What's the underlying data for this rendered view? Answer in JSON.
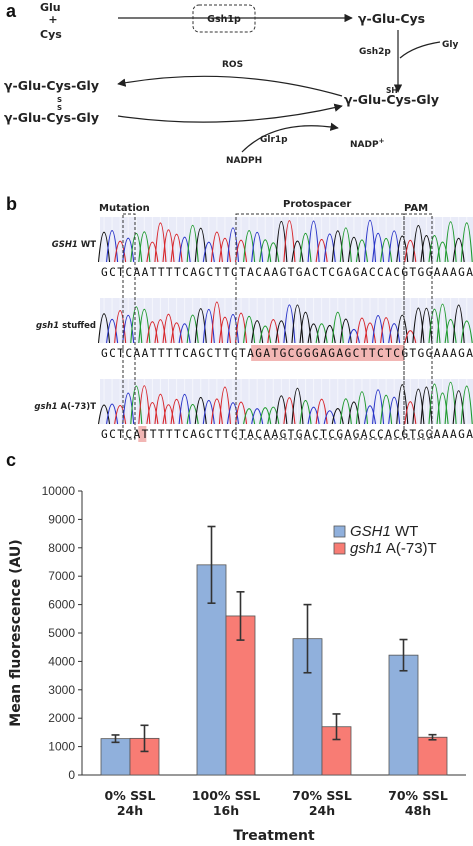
{
  "panel_a": {
    "label": "a",
    "glu": "Glu",
    "plus": "+",
    "cys": "Cys",
    "gsh1p": "Gsh1p",
    "ygc": "γ-Glu-Cys",
    "gsh2p": "Gsh2p",
    "gly": "Gly",
    "sh": "SH",
    "gsh": "γ-Glu-Cys-Gly",
    "ros": "ROS",
    "gssg_top": "γ-Glu-Cys-Gly",
    "gssg_s1": "S",
    "gssg_s2": "S",
    "gssg_bottom": "γ-Glu-Cys-Gly",
    "glr1p": "Glr1p",
    "nadph": "NADPH",
    "nadp": "NADP",
    "nadp_sup": "+"
  },
  "panel_b": {
    "label": "b",
    "mutation": "Mutation",
    "protospacer": "Protospacer",
    "pam": "PAM",
    "tracks": [
      {
        "gene": "GSH1",
        "suffix": " WT",
        "seq": "GCTCAATTTTCAGCTTCTACAAGTGACTCGAGACCACGTGGAAAGA"
      },
      {
        "gene": "gsh1",
        "suffix": " stuffed",
        "seq": "GCTCAATTTTCAGCTTCTAGATGCGGGAGAGCTTCTCGTGGAAAGA"
      },
      {
        "gene": "gsh1",
        "suffix": " A(-73)T",
        "seq": "GCTCATTTTTCAGCTTCTACAAGTGACTCGAGACCACGTGGAAAGA"
      }
    ]
  },
  "panel_c": {
    "label": "c"
  },
  "chart_data": {
    "type": "bar",
    "title": "",
    "xlabel": "Treatment",
    "ylabel": "Mean fluorescence (AU)",
    "ylim": [
      0,
      10000
    ],
    "yticks": [
      0,
      1000,
      2000,
      3000,
      4000,
      5000,
      6000,
      7000,
      8000,
      9000,
      10000
    ],
    "categories": [
      {
        "line1": "0% SSL",
        "line2": "24h"
      },
      {
        "line1": "100% SSL",
        "line2": "16h"
      },
      {
        "line1": "70% SSL",
        "line2": "24h"
      },
      {
        "line1": "70% SSL",
        "line2": "48h"
      }
    ],
    "series": [
      {
        "gene": "GSH1",
        "suffix": " WT",
        "color": "#90b0dc",
        "values": [
          1280,
          7400,
          4800,
          4220
        ],
        "errors": [
          130,
          1350,
          1200,
          550
        ]
      },
      {
        "gene": "gsh1",
        "suffix": " A(-73)T",
        "color": "#f87c74",
        "values": [
          1290,
          5600,
          1700,
          1330
        ],
        "errors": [
          460,
          850,
          450,
          90
        ]
      }
    ],
    "legend_position": "top-right",
    "grid": false
  }
}
